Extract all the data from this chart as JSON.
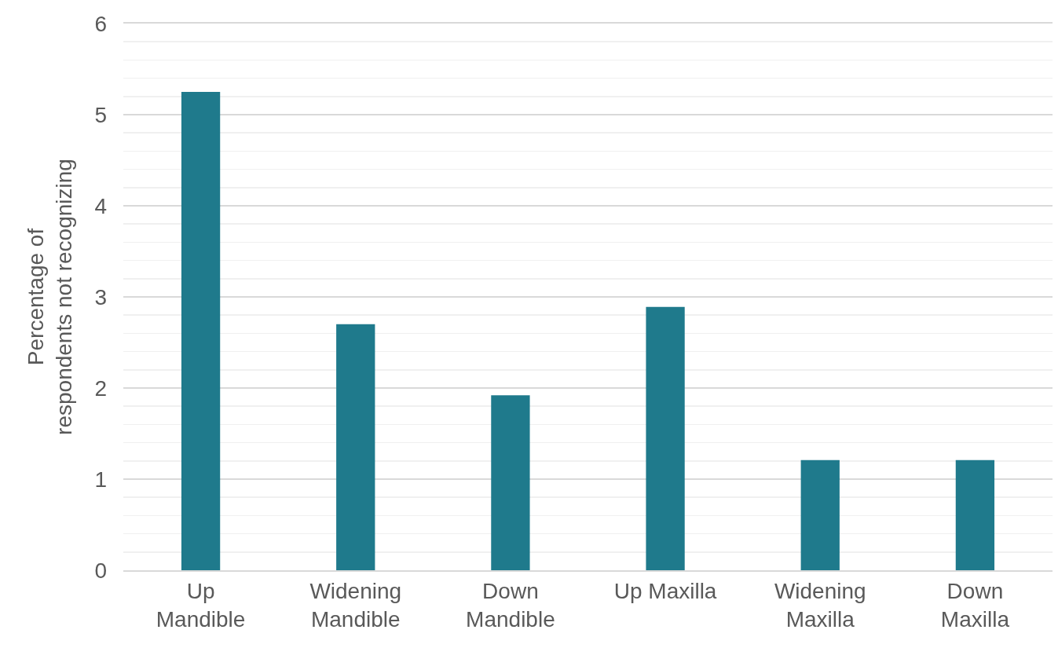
{
  "chart_data": {
    "type": "bar",
    "ylabel": "Percentage of respondents not recognizing",
    "categories": [
      "Up Mandible",
      "Widening Mandible",
      "Down Mandible",
      "Up Maxilla",
      "Widening Maxilla",
      "Down Maxilla"
    ],
    "values": [
      5.25,
      2.7,
      1.92,
      2.89,
      1.21,
      1.21
    ],
    "color": "#1f7a8c",
    "ylim": [
      0,
      6
    ],
    "yticks": [
      0,
      {
        "value": 0.2,
        "label": null
      },
      {
        "value": 0.4,
        "label": null
      },
      {
        "value": 0.6,
        "label": null
      },
      {
        "value": 0.8,
        "label": null
      },
      1,
      {
        "value": 1.2,
        "label": null
      },
      {
        "value": 1.4,
        "label": null
      },
      {
        "value": 1.6,
        "label": null
      },
      {
        "value": 1.8,
        "label": null
      },
      2,
      {
        "value": 2.2,
        "label": null
      },
      {
        "value": 2.4,
        "label": null
      },
      {
        "value": 2.6,
        "label": null
      },
      {
        "value": 2.8,
        "label": null
      },
      3,
      {
        "value": 3.2,
        "label": null
      },
      {
        "value": 3.4,
        "label": null
      },
      {
        "value": 3.6,
        "label": null
      },
      {
        "value": 3.8,
        "label": null
      },
      4,
      {
        "value": 4.2,
        "label": null
      },
      {
        "value": 4.4,
        "label": null
      },
      {
        "value": 4.6,
        "label": null
      },
      {
        "value": 4.8,
        "label": null
      },
      5,
      {
        "value": 5.2,
        "label": null
      },
      {
        "value": 5.4,
        "label": null
      },
      {
        "value": 5.6,
        "label": null
      },
      {
        "value": 5.8,
        "label": null
      },
      6
    ],
    "grid": "y"
  }
}
